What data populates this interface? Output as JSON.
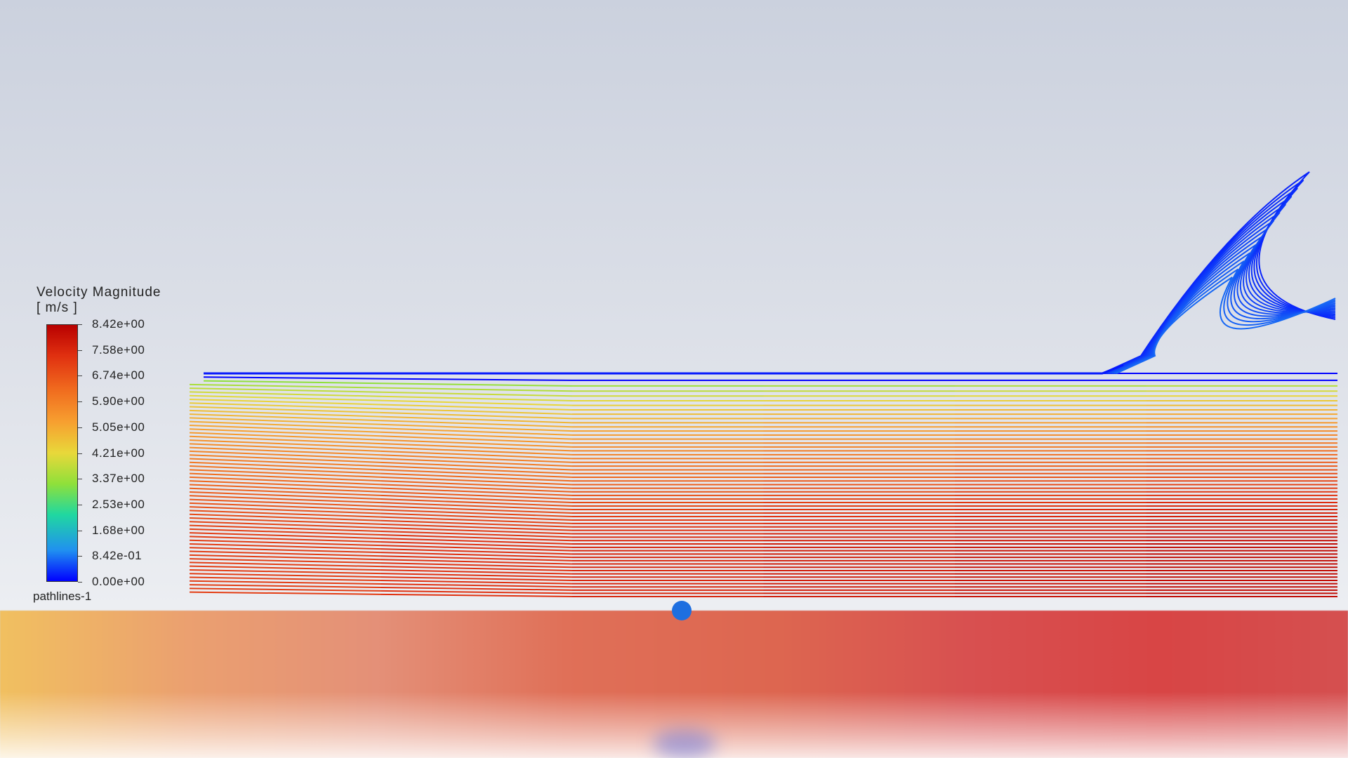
{
  "legend": {
    "title": "Velocity Magnitude",
    "unit": "[ m/s ]",
    "ticks": [
      "8.42e+00",
      "7.58e+00",
      "6.74e+00",
      "5.90e+00",
      "5.05e+00",
      "4.21e+00",
      "3.37e+00",
      "2.53e+00",
      "1.68e+00",
      "8.42e-01",
      "0.00e+00"
    ],
    "colormap": [
      "#b80000",
      "#e03010",
      "#f06a1e",
      "#f7a030",
      "#e8d83a",
      "#8fe03a",
      "#20d8a0",
      "#2090f0",
      "#0000ff"
    ]
  },
  "object_label": "pathlines-1",
  "colors": {
    "background_top": "#cbd1de",
    "background_bottom": "#eceef2",
    "scrubber_accent": "#1e6fe0"
  },
  "player": {
    "progress": 0.5
  }
}
